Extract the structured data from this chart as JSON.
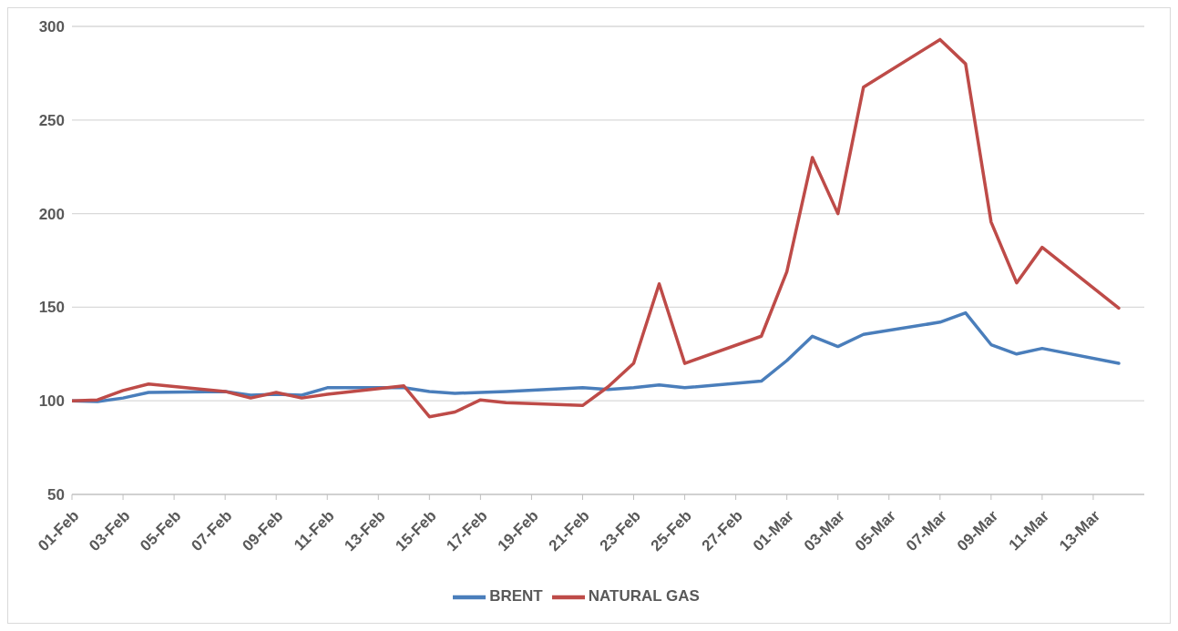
{
  "chart_data": {
    "type": "line",
    "x": [
      "--02-01",
      "--02-02",
      "--02-03",
      "--02-04",
      "--02-07",
      "--02-08",
      "--02-09",
      "--02-10",
      "--02-11",
      "--02-14",
      "--02-15",
      "--02-16",
      "--02-17",
      "--02-18",
      "--02-21",
      "--02-22",
      "--02-23",
      "--02-24",
      "--02-25",
      "--02-28",
      "--03-01",
      "--03-02",
      "--03-03",
      "--03-04",
      "--03-07",
      "--03-08",
      "--03-09",
      "--03-10",
      "--03-11",
      "--03-14"
    ],
    "series": [
      {
        "name": "BRENT",
        "color": "#4a7ebb",
        "values": [
          100,
          99.6,
          101.5,
          104.5,
          105,
          103,
          103.5,
          103,
          107,
          107,
          105,
          104,
          104.5,
          105,
          107,
          106,
          107,
          108.5,
          107,
          110.5,
          121.5,
          134.5,
          129,
          135.5,
          142,
          147,
          130,
          125,
          128,
          120
        ]
      },
      {
        "name": "NATURAL GAS",
        "color": "#be4b48",
        "values": [
          100,
          100.5,
          105.5,
          109,
          105,
          101.5,
          104.5,
          101.5,
          103.5,
          108,
          91.5,
          94,
          100.5,
          99,
          97.5,
          107.5,
          120,
          162.5,
          120,
          134.5,
          169,
          230,
          200,
          267.5,
          293,
          280,
          195.5,
          163,
          182,
          149.5
        ]
      }
    ],
    "xlim": [
      "--02-01",
      "--03-15"
    ],
    "xticks": [
      {
        "value": "--02-01",
        "label": "01-Feb"
      },
      {
        "value": "--02-03",
        "label": "03-Feb"
      },
      {
        "value": "--02-05",
        "label": "05-Feb"
      },
      {
        "value": "--02-07",
        "label": "07-Feb"
      },
      {
        "value": "--02-09",
        "label": "09-Feb"
      },
      {
        "value": "--02-11",
        "label": "11-Feb"
      },
      {
        "value": "--02-13",
        "label": "13-Feb"
      },
      {
        "value": "--02-15",
        "label": "15-Feb"
      },
      {
        "value": "--02-17",
        "label": "17-Feb"
      },
      {
        "value": "--02-19",
        "label": "19-Feb"
      },
      {
        "value": "--02-21",
        "label": "21-Feb"
      },
      {
        "value": "--02-23",
        "label": "23-Feb"
      },
      {
        "value": "--02-25",
        "label": "25-Feb"
      },
      {
        "value": "--02-27",
        "label": "27-Feb"
      },
      {
        "value": "--03-01",
        "label": "01-Mar"
      },
      {
        "value": "--03-03",
        "label": "03-Mar"
      },
      {
        "value": "--03-05",
        "label": "05-Mar"
      },
      {
        "value": "--03-07",
        "label": "07-Mar"
      },
      {
        "value": "--03-09",
        "label": "09-Mar"
      },
      {
        "value": "--03-11",
        "label": "11-Mar"
      },
      {
        "value": "--03-13",
        "label": "13-Mar"
      }
    ],
    "ylim": [
      50,
      300
    ],
    "yticks": [
      50,
      100,
      150,
      200,
      250,
      300
    ],
    "grid": "y",
    "legend": "bottom",
    "marker": "none",
    "line_style": "solid"
  }
}
